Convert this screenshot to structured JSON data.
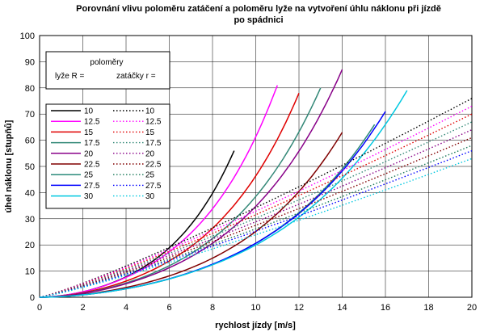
{
  "chart_data": {
    "type": "line",
    "title": "Porovnání vlivu poloměru zatáčení a poloměru lyže na vytvoření  úhlu náklonu při jízdě",
    "title_line2": "po spádnici",
    "xlabel": "rychlost jízdy [m/s]",
    "ylabel": "úhel náklonu [stupňů]",
    "xlim": [
      0,
      20
    ],
    "ylim": [
      0,
      100
    ],
    "xticks": [
      0,
      2,
      4,
      6,
      8,
      10,
      12,
      14,
      16,
      18,
      20
    ],
    "yticks": [
      0,
      10,
      20,
      30,
      40,
      50,
      60,
      70,
      80,
      90,
      100
    ],
    "grid": true,
    "legend_position": "left",
    "legend_header": {
      "line1": "poloměry",
      "line2_left": "lyže R =",
      "line2_right": "zatáčky r ="
    },
    "series": [
      {
        "name": "10",
        "style": "solid",
        "color": "#000000",
        "x_max": 9.0,
        "y_end": 56.0
      },
      {
        "name": "12.5",
        "style": "solid",
        "color": "#ff00ff",
        "x_max": 11.0,
        "y_end": 81.0
      },
      {
        "name": "15",
        "style": "solid",
        "color": "#e00000",
        "x_max": 12.0,
        "y_end": 78.0
      },
      {
        "name": "17.5",
        "style": "solid",
        "color": "#338877",
        "x_max": 13.0,
        "y_end": 80.0
      },
      {
        "name": "20",
        "style": "solid",
        "color": "#880088",
        "x_max": 14.0,
        "y_end": 87.0
      },
      {
        "name": "22.5",
        "style": "solid",
        "color": "#800000",
        "x_max": 14.0,
        "y_end": 63.0
      },
      {
        "name": "25",
        "style": "solid",
        "color": "#2a8a7a",
        "x_max": 15.5,
        "y_end": 66.0
      },
      {
        "name": "27.5",
        "style": "solid",
        "color": "#0000ff",
        "x_max": 16.0,
        "y_end": 71.0
      },
      {
        "name": "30",
        "style": "solid",
        "color": "#00c8e0",
        "x_max": 17.0,
        "y_end": 79.0
      },
      {
        "name": "10",
        "style": "dotted",
        "color": "#000000",
        "x_max": 20.0,
        "y_end": 76.0
      },
      {
        "name": "12.5",
        "style": "dotted",
        "color": "#ff00ff",
        "x_max": 20.0,
        "y_end": 73.0
      },
      {
        "name": "15",
        "style": "dotted",
        "color": "#e00000",
        "x_max": 20.0,
        "y_end": 70.0
      },
      {
        "name": "17.5",
        "style": "dotted",
        "color": "#338877",
        "x_max": 20.0,
        "y_end": 67.0
      },
      {
        "name": "20",
        "style": "dotted",
        "color": "#880088",
        "x_max": 20.0,
        "y_end": 64.0
      },
      {
        "name": "22.5",
        "style": "dotted",
        "color": "#800000",
        "x_max": 20.0,
        "y_end": 61.0
      },
      {
        "name": "25",
        "style": "dotted",
        "color": "#1a7a5a",
        "x_max": 20.0,
        "y_end": 58.0
      },
      {
        "name": "27.5",
        "style": "dotted",
        "color": "#0000ff",
        "x_max": 20.0,
        "y_end": 56.0
      },
      {
        "name": "30",
        "style": "dotted",
        "color": "#00c8e0",
        "x_max": 20.0,
        "y_end": 53.0
      }
    ]
  }
}
